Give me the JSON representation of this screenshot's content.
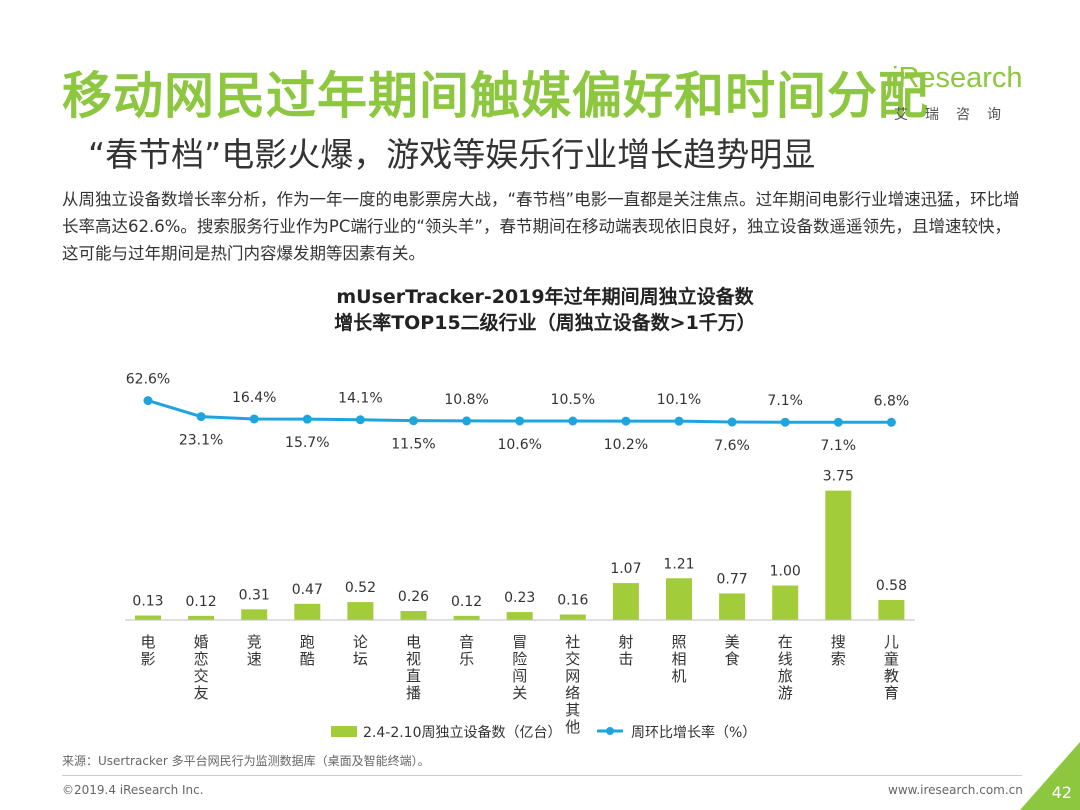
{
  "slide": {
    "title": "移动网民过年期间触媒偏好和时间分配",
    "subtitle": "“春节档”电影火爆，游戏等娱乐行业增长趋势明显",
    "paragraph": "从周独立设备数增长率分析，作为一年一度的电影票房大战，“春节档”电影一直都是关注焦点。过年期间电影行业增速迅猛，环比增长率高达62.6%。搜索服务行业作为PC端行业的“领头羊”，春节期间在移动端表现依旧良好，独立设备数遥遥领先，且增速较快，这可能与过年期间是热门内容爆发期等因素有关。",
    "source": "来源：Usertracker 多平台网民行为监测数据库（桌面及智能终端）。",
    "copyright": "©2019.4 iResearch Inc.",
    "website": "www.iresearch.com.cn",
    "page_number": "42"
  },
  "logo": {
    "word": "iResearch",
    "subtext": "艾瑞咨询"
  },
  "colors": {
    "accent": "#8dc63f",
    "bar": "#a3cc3a",
    "line": "#1ea5e0"
  },
  "chart_data": {
    "type": "bar",
    "title": "mUserTracker-2019年过年期间周独立设备数",
    "subtitle": "增长率TOP15二级行业（周独立设备数>1千万）",
    "categories": [
      "电影",
      "婚恋交友",
      "竞速",
      "跑酷",
      "论坛",
      "电视直播",
      "音乐",
      "冒险闯关",
      "社交网络其他",
      "射击",
      "照相机",
      "美食",
      "在线旅游",
      "搜索",
      "儿童教育"
    ],
    "bar_labels": [
      "0.13",
      "0.12",
      "0.31",
      "0.47",
      "0.52",
      "0.26",
      "0.12",
      "0.23",
      "0.16",
      "1.07",
      "1.21",
      "0.77",
      "1.00",
      "3.75",
      "0.58"
    ],
    "line_labels": [
      "62.6%",
      "23.1%",
      "16.4%",
      "15.7%",
      "14.1%",
      "11.5%",
      "10.8%",
      "10.6%",
      "10.5%",
      "10.2%",
      "10.1%",
      "7.6%",
      "7.1%",
      "7.1%",
      "6.8%"
    ],
    "series": [
      {
        "name": "2.4-2.10周独立设备数（亿台）",
        "type": "bar",
        "values": [
          0.13,
          0.12,
          0.31,
          0.47,
          0.52,
          0.26,
          0.12,
          0.23,
          0.16,
          1.07,
          1.21,
          0.77,
          1.0,
          3.75,
          0.58
        ]
      },
      {
        "name": "周环比增长率（%）",
        "type": "line",
        "values": [
          62.6,
          23.1,
          16.4,
          15.7,
          14.1,
          11.5,
          10.8,
          10.6,
          10.5,
          10.2,
          10.1,
          7.6,
          7.1,
          7.1,
          6.8
        ]
      }
    ]
  }
}
